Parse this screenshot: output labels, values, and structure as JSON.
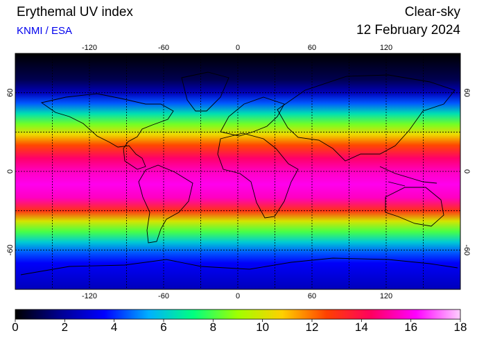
{
  "header": {
    "title": "Erythemal UV index",
    "source": "KNMI / ESA",
    "condition": "Clear-sky",
    "date": "12 February 2024"
  },
  "map": {
    "projection": "equirectangular",
    "lon_range": [
      -180,
      180
    ],
    "lat_range": [
      -90,
      90
    ],
    "lon_ticks": [
      "-120",
      "-60",
      "0",
      "60",
      "120"
    ],
    "lat_ticks_left": [
      "60",
      "0",
      "-60"
    ],
    "lat_ticks_right": [
      "60",
      "0",
      "-60"
    ],
    "grid": "dotted, every 30 degrees",
    "variable": "Erythemal UV index",
    "uv_bands": [
      {
        "lat": 90,
        "uv": 0
      },
      {
        "lat": 70,
        "uv": 1
      },
      {
        "lat": 60,
        "uv": 2.5
      },
      {
        "lat": 52,
        "uv": 4.5
      },
      {
        "lat": 44,
        "uv": 6.5
      },
      {
        "lat": 36,
        "uv": 8.5
      },
      {
        "lat": 28,
        "uv": 10.5
      },
      {
        "lat": 20,
        "uv": 12.5
      },
      {
        "lat": 10,
        "uv": 14.5
      },
      {
        "lat": 0,
        "uv": 15.5
      },
      {
        "lat": -10,
        "uv": 16
      },
      {
        "lat": -20,
        "uv": 15.5
      },
      {
        "lat": -30,
        "uv": 13
      },
      {
        "lat": -38,
        "uv": 10
      },
      {
        "lat": -46,
        "uv": 8
      },
      {
        "lat": -54,
        "uv": 6
      },
      {
        "lat": -62,
        "uv": 4.5
      },
      {
        "lat": -70,
        "uv": 3.5
      },
      {
        "lat": -90,
        "uv": 2.5
      }
    ]
  },
  "colorbar": {
    "min": 0,
    "max": 18,
    "labels": [
      "0",
      "2",
      "4",
      "6",
      "8",
      "10",
      "12",
      "14",
      "16",
      "18"
    ],
    "colors": [
      "#000000",
      "#000090",
      "#0000ff",
      "#00b0ff",
      "#00ff80",
      "#a0ff00",
      "#ffd000",
      "#ff4000",
      "#ff0060",
      "#ff00ff",
      "#ffd0ff"
    ]
  }
}
